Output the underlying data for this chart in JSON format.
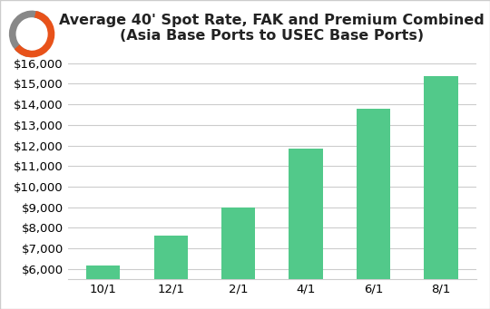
{
  "categories": [
    "10/1",
    "12/1",
    "2/1",
    "4/1",
    "6/1",
    "8/1"
  ],
  "values": [
    6150,
    7600,
    9000,
    11850,
    13800,
    15350
  ],
  "bar_color": "#52c98a",
  "title_line1": "Average 40' Spot Rate, FAK and Premium Combined",
  "title_line2": "(Asia Base Ports to USEC Base Ports)",
  "ylim": [
    5500,
    16500
  ],
  "yticks": [
    6000,
    7000,
    8000,
    9000,
    10000,
    11000,
    12000,
    13000,
    14000,
    15000,
    16000
  ],
  "background_color": "#ffffff",
  "grid_color": "#cccccc",
  "title_fontsize": 11.5,
  "tick_fontsize": 9.5,
  "border_color": "#cccccc",
  "logo_gray": "#888888",
  "logo_orange": "#e8521a"
}
